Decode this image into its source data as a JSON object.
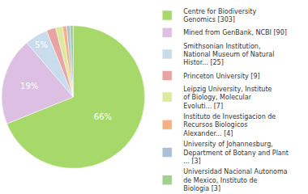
{
  "chart_data": {
    "type": "pie",
    "categories": [
      "Centre for Biodiversity Genomics [303]",
      "Mined from GenBank, NCBI [90]",
      "Smithsonian Institution, National Museum of Natural Histor... [25]",
      "Princeton University [9]",
      "Leipzig University, Institute of Biology, Molecular Evoluti... [7]",
      "Instituto de Investigacion de Recursos Biologicos Alexander... [4]",
      "University of Johannesburg, Department of Botany and Plant ... [3]",
      "Universidad Nacional Autonoma de Mexico, Instituto de Biologia [3]"
    ],
    "values": [
      66,
      19,
      5,
      2,
      1.5,
      0.9,
      0.7,
      0.7
    ],
    "value_labels": [
      "66%",
      "19%",
      "5%",
      null,
      null,
      null,
      null,
      null
    ],
    "colors": [
      "#a6d96a",
      "#dcbfe3",
      "#c9dcec",
      "#e8a3a3",
      "#dde99c",
      "#f4b183",
      "#a9bfdc",
      "#9fd08e"
    ],
    "data_labels": true,
    "legend": "right"
  }
}
